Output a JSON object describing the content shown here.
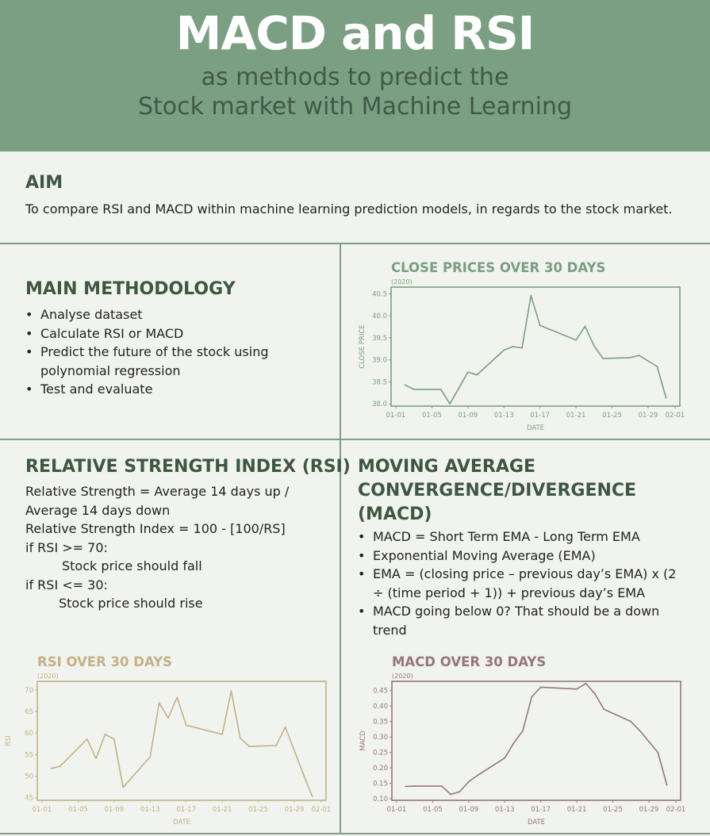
{
  "header": {
    "title": "MACD and RSI",
    "subtitle_line1": "as methods to predict the",
    "subtitle_line2": "Stock market with Machine Learning"
  },
  "aim": {
    "title": "AIM",
    "text": "To compare RSI and MACD within machine learning prediction models, in regards to the stock market."
  },
  "methodology": {
    "title": "MAIN METHODOLOGY",
    "items": [
      "Analyse dataset",
      "Calculate RSI or MACD",
      "Predict the future of the stock using polynomial regression",
      "Test and evaluate"
    ]
  },
  "rsi_section": {
    "title": "RELATIVE STRENGTH INDEX (RSI)",
    "lines": [
      "Relative Strength = Average 14 days up /",
      "Average 14 days down",
      "Relative Strength Index = 100 - [100/RS]",
      "if RSI >= 70:",
      "Stock price should fall",
      "if RSI <= 30:",
      "Stock price should rise"
    ]
  },
  "macd_section": {
    "title_line1": "MOVING AVERAGE",
    "title_line2": "CONVERGENCE/DIVERGENCE",
    "title_line3": "(MACD)",
    "items": [
      "MACD =  Short Term EMA - Long Term EMA",
      "Exponential Moving Average (EMA)",
      "EMA =  (closing price – previous day’s EMA) x (2 ÷ (time period + 1)) + previous day’s EMA",
      "MACD going below 0? That should be a down trend"
    ]
  },
  "chart_data": [
    {
      "type": "line",
      "title": "CLOSE PRICES OVER 30 DAYS",
      "subtitle": "(2020)",
      "xlabel": "DATE",
      "ylabel": "CLOSE PRICE",
      "color": "#7a9f83",
      "x_ticks": [
        "01-01",
        "01-05",
        "01-09",
        "01-13",
        "01-17",
        "01-21",
        "01-25",
        "01-29",
        "02-01"
      ],
      "y_ticks": [
        "38.0",
        "38.5",
        "39.0",
        "39.5",
        "40.0",
        "40.5"
      ],
      "ylim": [
        37.95,
        40.65
      ],
      "x": [
        "01-02",
        "01-03",
        "01-06",
        "01-07",
        "01-08",
        "01-09",
        "01-10",
        "01-13",
        "01-14",
        "01-15",
        "01-16",
        "01-17",
        "01-21",
        "01-22",
        "01-23",
        "01-24",
        "01-27",
        "01-28",
        "01-30",
        "01-31"
      ],
      "values": [
        38.43,
        38.33,
        38.33,
        38.0,
        38.36,
        38.72,
        38.66,
        39.22,
        39.3,
        39.27,
        40.46,
        39.78,
        39.45,
        39.76,
        39.32,
        39.03,
        39.05,
        39.1,
        38.85,
        38.14
      ]
    },
    {
      "type": "line",
      "title": "RSI OVER 30 DAYS",
      "subtitle": "(2020)",
      "xlabel": "DATE",
      "ylabel": "RSI",
      "color": "#c3b287",
      "x_ticks": [
        "01-01",
        "01-05",
        "01-09",
        "01-13",
        "01-17",
        "01-21",
        "01-25",
        "01-29",
        "02-01"
      ],
      "y_ticks": [
        "45",
        "50",
        "55",
        "60",
        "65",
        "70"
      ],
      "ylim": [
        44.4,
        72
      ],
      "x": [
        "01-02",
        "01-03",
        "01-06",
        "01-07",
        "01-08",
        "01-09",
        "01-10",
        "01-13",
        "01-14",
        "01-15",
        "01-16",
        "01-17",
        "01-21",
        "01-22",
        "01-23",
        "01-24",
        "01-27",
        "01-28",
        "01-30",
        "01-31"
      ],
      "values": [
        51.8,
        52.3,
        58.6,
        54.1,
        59.7,
        58.6,
        47.4,
        54.5,
        67.0,
        63.5,
        68.3,
        61.8,
        59.7,
        69.8,
        58.8,
        56.9,
        57.1,
        61.4,
        50.5,
        45.3
      ]
    },
    {
      "type": "line",
      "title": "MACD OVER 30 DAYS",
      "subtitle": "(2020)",
      "xlabel": "DATE",
      "ylabel": "MACD",
      "color": "#967680",
      "x_ticks": [
        "01-01",
        "01-05",
        "01-09",
        "01-13",
        "01-17",
        "01-21",
        "01-25",
        "01-29",
        "02-01"
      ],
      "y_ticks": [
        "0.10",
        "0.15",
        "0.20",
        "0.25",
        "0.30",
        "0.35",
        "0.40",
        "0.45"
      ],
      "ylim": [
        0.095,
        0.48
      ],
      "x": [
        "01-02",
        "01-03",
        "01-06",
        "01-07",
        "01-08",
        "01-09",
        "01-10",
        "01-13",
        "01-14",
        "01-15",
        "01-16",
        "01-17",
        "01-21",
        "01-22",
        "01-23",
        "01-24",
        "01-27",
        "01-28",
        "01-30",
        "01-31"
      ],
      "values": [
        0.14,
        0.141,
        0.141,
        0.114,
        0.123,
        0.155,
        0.176,
        0.232,
        0.28,
        0.32,
        0.43,
        0.461,
        0.455,
        0.473,
        0.44,
        0.39,
        0.35,
        0.32,
        0.25,
        0.145
      ]
    }
  ]
}
